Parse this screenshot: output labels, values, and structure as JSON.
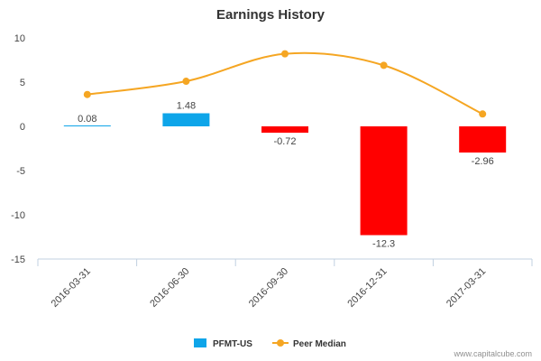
{
  "chart_data": {
    "type": "bar",
    "title": "Earnings History",
    "categories": [
      "2016-03-31",
      "2016-06-30",
      "2016-09-30",
      "2016-12-31",
      "2017-03-31"
    ],
    "series": [
      {
        "name": "PFMT-US",
        "type": "bar",
        "values": [
          0.08,
          1.48,
          -0.72,
          -12.3,
          -2.96
        ],
        "labels": [
          "0.08",
          "1.48",
          "-0.72",
          "-12.3",
          "-2.96"
        ],
        "color_positive": "#0ea5e9",
        "color_negative": "#ff0000"
      },
      {
        "name": "Peer Median",
        "type": "line",
        "values": [
          3.6,
          5.1,
          8.2,
          6.9,
          1.4
        ],
        "color": "#f5a623"
      }
    ],
    "ylim": [
      -15,
      10
    ],
    "yticks": [
      10,
      5,
      0,
      -5,
      -10,
      -15
    ],
    "xlabel": "",
    "ylabel": "",
    "grid": false,
    "legend": "bottom-center"
  },
  "credit": "www.capitalcube.com"
}
